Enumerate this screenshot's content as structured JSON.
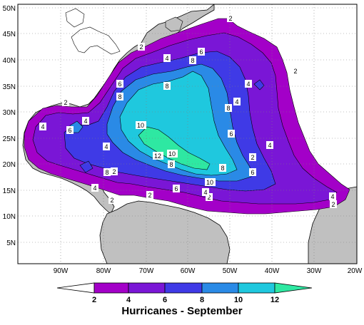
{
  "title": "Hurricanes - September",
  "map": {
    "lat_ticks": [
      "5N",
      "10N",
      "15N",
      "20N",
      "25N",
      "30N",
      "35N",
      "40N",
      "45N",
      "50N"
    ],
    "lon_ticks": [
      "90W",
      "80W",
      "70W",
      "60W",
      "50W",
      "40W",
      "30W",
      "20W"
    ]
  },
  "contour_labels": [
    "2",
    "2",
    "2",
    "2",
    "2",
    "2",
    "2",
    "2",
    "2",
    "2",
    "4",
    "4",
    "4",
    "4",
    "4",
    "4",
    "4",
    "4",
    "4",
    "4",
    "6",
    "6",
    "6",
    "6",
    "6",
    "6",
    "8",
    "8",
    "8",
    "8",
    "8",
    "8",
    "8",
    "10",
    "10",
    "10",
    "12"
  ],
  "legend": {
    "labels": [
      "2",
      "4",
      "6",
      "8",
      "10",
      "12"
    ],
    "colors": {
      "lt2": "#ffffff",
      "c2": "#a300c8",
      "c4": "#7a16d6",
      "c6": "#3f3ae6",
      "c8": "#2a8ae6",
      "c10": "#1fc8de",
      "c12": "#2ee8a2"
    }
  },
  "colors": {
    "land": "#c0c0c0",
    "ocean": "#ffffff",
    "grid": "#808080"
  }
}
